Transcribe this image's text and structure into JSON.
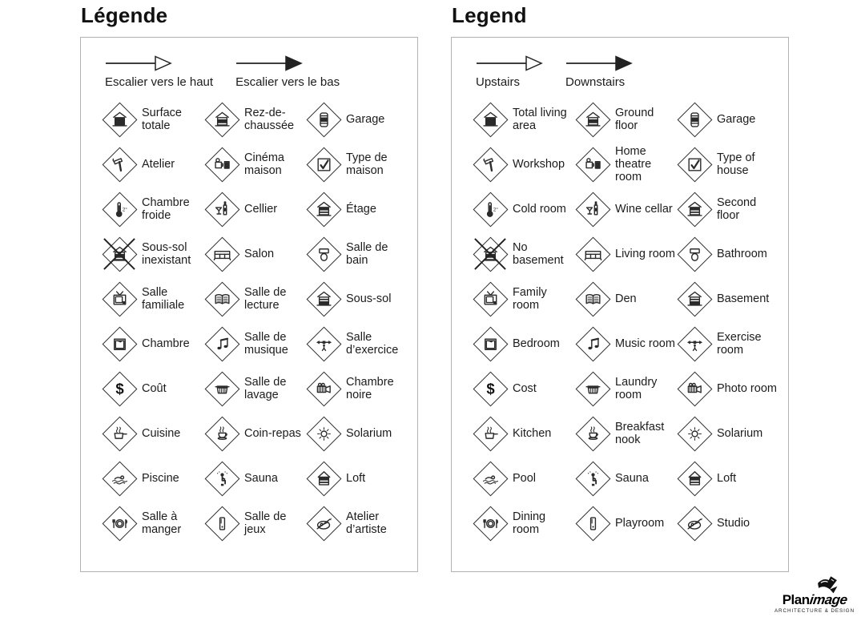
{
  "colors": {
    "ink": "#1c1c1c",
    "panel_border": "#b2b2b2",
    "background": "#ffffff"
  },
  "panels": [
    {
      "title": "Légende",
      "arrows": [
        {
          "style": "hollow",
          "label": "Escalier vers le haut"
        },
        {
          "style": "filled",
          "label": "Escalier vers le bas"
        }
      ],
      "items": [
        {
          "icon": "total-living-area-icon",
          "label": "Surface totale"
        },
        {
          "icon": "ground-floor-icon",
          "label": "Rez-de-chaussée"
        },
        {
          "icon": "garage-icon",
          "label": "Garage"
        },
        {
          "icon": "workshop-icon",
          "label": "Atelier"
        },
        {
          "icon": "home-theatre-icon",
          "label": "Cinéma maison"
        },
        {
          "icon": "type-of-house-icon",
          "label": "Type de maison"
        },
        {
          "icon": "cold-room-icon",
          "label": "Chambre froide"
        },
        {
          "icon": "wine-cellar-icon",
          "label": "Cellier"
        },
        {
          "icon": "second-floor-icon",
          "label": "Étage"
        },
        {
          "icon": "no-basement-icon",
          "label": "Sous-sol inexistant"
        },
        {
          "icon": "living-room-icon",
          "label": "Salon"
        },
        {
          "icon": "bathroom-icon",
          "label": "Salle de bain"
        },
        {
          "icon": "family-room-icon",
          "label": "Salle familiale"
        },
        {
          "icon": "den-icon",
          "label": "Salle de lecture"
        },
        {
          "icon": "basement-icon",
          "label": "Sous-sol"
        },
        {
          "icon": "bedroom-icon",
          "label": "Chambre"
        },
        {
          "icon": "music-room-icon",
          "label": "Salle de musique"
        },
        {
          "icon": "exercise-room-icon",
          "label": "Salle d’exercice"
        },
        {
          "icon": "cost-icon",
          "label": "Coût"
        },
        {
          "icon": "laundry-room-icon",
          "label": "Salle de lavage"
        },
        {
          "icon": "photo-room-icon",
          "label": "Chambre noire"
        },
        {
          "icon": "kitchen-icon",
          "label": "Cuisine"
        },
        {
          "icon": "breakfast-nook-icon",
          "label": "Coin-repas"
        },
        {
          "icon": "solarium-icon",
          "label": "Solarium"
        },
        {
          "icon": "pool-icon",
          "label": "Piscine"
        },
        {
          "icon": "sauna-icon",
          "label": "Sauna"
        },
        {
          "icon": "loft-icon",
          "label": "Loft"
        },
        {
          "icon": "dining-room-icon",
          "label": "Salle à manger"
        },
        {
          "icon": "playroom-icon",
          "label": "Salle de jeux"
        },
        {
          "icon": "studio-icon",
          "label": "Atelier d’artiste"
        }
      ]
    },
    {
      "title": "Legend",
      "arrows": [
        {
          "style": "hollow",
          "label": "Upstairs"
        },
        {
          "style": "filled",
          "label": "Downstairs"
        }
      ],
      "items": [
        {
          "icon": "total-living-area-icon",
          "label": "Total living area"
        },
        {
          "icon": "ground-floor-icon",
          "label": "Ground floor"
        },
        {
          "icon": "garage-icon",
          "label": "Garage"
        },
        {
          "icon": "workshop-icon",
          "label": "Workshop"
        },
        {
          "icon": "home-theatre-icon",
          "label": "Home theatre room"
        },
        {
          "icon": "type-of-house-icon",
          "label": "Type of house"
        },
        {
          "icon": "cold-room-icon",
          "label": "Cold room"
        },
        {
          "icon": "wine-cellar-icon",
          "label": "Wine cellar"
        },
        {
          "icon": "second-floor-icon",
          "label": "Second floor"
        },
        {
          "icon": "no-basement-icon",
          "label": "No basement"
        },
        {
          "icon": "living-room-icon",
          "label": "Living room"
        },
        {
          "icon": "bathroom-icon",
          "label": "Bathroom"
        },
        {
          "icon": "family-room-icon",
          "label": "Family room"
        },
        {
          "icon": "den-icon",
          "label": "Den"
        },
        {
          "icon": "basement-icon",
          "label": "Basement"
        },
        {
          "icon": "bedroom-icon",
          "label": "Bedroom"
        },
        {
          "icon": "music-room-icon",
          "label": "Music room"
        },
        {
          "icon": "exercise-room-icon",
          "label": "Exercise room"
        },
        {
          "icon": "cost-icon",
          "label": "Cost"
        },
        {
          "icon": "laundry-room-icon",
          "label": "Laundry room"
        },
        {
          "icon": "photo-room-icon",
          "label": "Photo room"
        },
        {
          "icon": "kitchen-icon",
          "label": "Kitchen"
        },
        {
          "icon": "breakfast-nook-icon",
          "label": "Breakfast nook"
        },
        {
          "icon": "solarium-icon",
          "label": "Solarium"
        },
        {
          "icon": "pool-icon",
          "label": "Pool"
        },
        {
          "icon": "sauna-icon",
          "label": "Sauna"
        },
        {
          "icon": "loft-icon",
          "label": "Loft"
        },
        {
          "icon": "dining-room-icon",
          "label": "Dining room"
        },
        {
          "icon": "playroom-icon",
          "label": "Playroom"
        },
        {
          "icon": "studio-icon",
          "label": "Studio"
        }
      ]
    }
  ],
  "logo": {
    "brand_bold": "Plan",
    "brand_italic": "image",
    "tagline": "ARCHITECTURE & DESIGN"
  }
}
